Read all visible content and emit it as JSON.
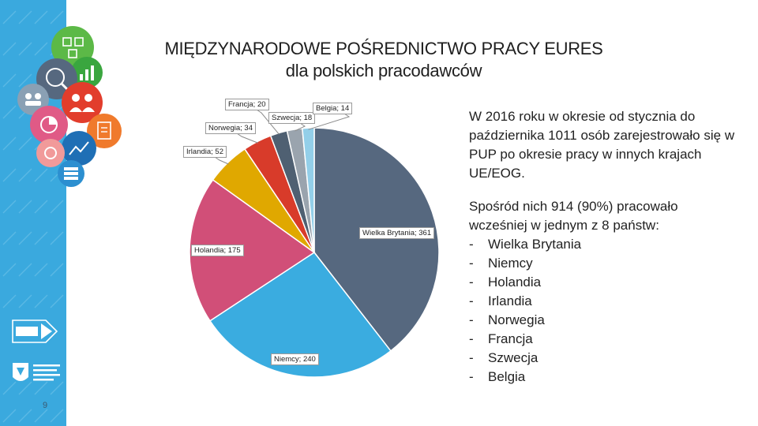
{
  "title_line1": "MIĘDZYNARODOWE  POŚREDNICTWO  PRACY  EURES",
  "title_line2": "dla polskich pracodawców",
  "chart_data": {
    "type": "pie",
    "slices": [
      {
        "label": "Wielka Brytania",
        "value": 361,
        "color": "#56687f"
      },
      {
        "label": "Niemcy",
        "value": 240,
        "color": "#3aace0"
      },
      {
        "label": "Holandia",
        "value": 175,
        "color": "#d14f78"
      },
      {
        "label": "Irlandia",
        "value": 52,
        "color": "#e0a800"
      },
      {
        "label": "Norwegia",
        "value": 34,
        "color": "#d83b2a"
      },
      {
        "label": "Francja",
        "value": 20,
        "color": "#4f6072"
      },
      {
        "label": "Szwecja",
        "value": 18,
        "color": "#9aa4ae"
      },
      {
        "label": "Belgia",
        "value": 14,
        "color": "#93cfe9"
      }
    ],
    "data_labels": [
      "Wielka Brytania; 361",
      "Niemcy; 240",
      "Holandia; 175",
      "Irlandia; 52",
      "Norwegia; 34",
      "Francja; 20",
      "Szwecja; 18",
      "Belgia; 14"
    ]
  },
  "paragraph1": "W 2016 roku w okresie od stycznia do października 1011 osób zarejestrowało się w PUP po okresie pracy w innych krajach UE/EOG.",
  "paragraph2": "Spośród nich 914 (90%) pracowało wcześniej w jednym z 8 państw:",
  "list_dash": "-",
  "countries": [
    "Wielka Brytania",
    "Niemcy",
    "Holandia",
    "Irlandia",
    "Norwegia",
    "Francja",
    "Szwecja",
    "Belgia"
  ],
  "page_number": "9",
  "sidebar_color": "#3aa9de"
}
